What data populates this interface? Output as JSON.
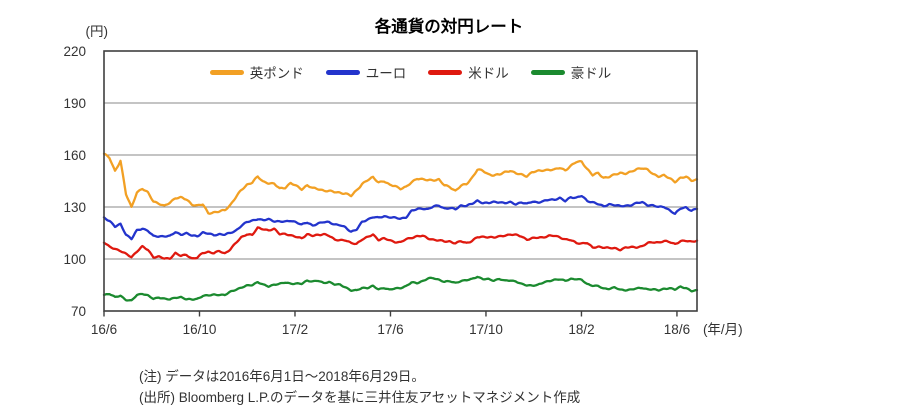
{
  "chart_data": {
    "type": "line",
    "title": "各通貨の対円レート",
    "unit_label": "(円)",
    "x_axis_unit": "(年/月)",
    "x_tick_labels": [
      "16/6",
      "16/10",
      "17/2",
      "17/6",
      "17/10",
      "18/2",
      "18/6"
    ],
    "x_tick_months": [
      0,
      4,
      8,
      12,
      16,
      20,
      24
    ],
    "xlim_months": [
      0,
      24.84
    ],
    "y_ticks": [
      220,
      190,
      160,
      130,
      100,
      70
    ],
    "ylim": [
      70,
      220
    ],
    "grid": "horizontal-only",
    "legend_position": "top-center",
    "x_range_label": "2016/6/1 - 2018/6/29 (daily)",
    "series": [
      {
        "name": "英ポンド",
        "color": "#F2A024",
        "values": [
          160.7,
          158.2,
          150.8,
          156.8,
          137.3,
          129.8,
          138.6,
          140.5,
          138.2,
          133.4,
          132.0,
          130.4,
          132.6,
          135.3,
          135.4,
          134.3,
          131.6,
          130.8,
          131.4,
          126.5,
          126.9,
          127.3,
          128.2,
          131.2,
          135.6,
          139.7,
          142.8,
          144.3,
          147.4,
          144.6,
          143.9,
          143.3,
          140.6,
          141.3,
          143.8,
          142.1,
          140.3,
          142.6,
          140.8,
          140.4,
          139.6,
          139.2,
          138.6,
          138.3,
          137.8,
          136.3,
          139.6,
          143.4,
          145.4,
          147.1,
          144.4,
          144.9,
          142.6,
          142.3,
          140.6,
          141.4,
          144.2,
          146.6,
          145.9,
          145.4,
          145.6,
          145.9,
          142.4,
          141.6,
          139.4,
          142.2,
          143.1,
          146.8,
          151.6,
          150.8,
          148.9,
          148.4,
          148.6,
          150.1,
          151.1,
          149.4,
          148.6,
          147.9,
          150.2,
          150.6,
          151.2,
          151.6,
          151.4,
          152.6,
          151.3,
          153.6,
          155.9,
          156.3,
          151.9,
          148.3,
          149.6,
          146.9,
          147.3,
          148.6,
          149.8,
          149.3,
          150.1,
          151.9,
          152.6,
          151.4,
          148.9,
          147.8,
          148.3,
          146.4,
          144.6,
          146.9,
          147.3,
          145.3,
          145.9
        ]
      },
      {
        "name": "ユーロ",
        "color": "#2334CC",
        "values": [
          123.9,
          122.1,
          118.6,
          120.1,
          114.2,
          111.6,
          116.4,
          117.6,
          116.4,
          113.1,
          113.0,
          113.3,
          113.2,
          115.4,
          114.2,
          114.9,
          113.4,
          113.2,
          115.4,
          114.6,
          113.7,
          114.4,
          114.1,
          114.9,
          116.4,
          119.2,
          121.2,
          122.1,
          123.2,
          122.3,
          122.9,
          121.9,
          121.7,
          121.4,
          122.2,
          121.3,
          119.7,
          121.1,
          119.4,
          120.4,
          121.2,
          121.4,
          119.9,
          119.4,
          118.2,
          115.8,
          116.9,
          121.3,
          122.9,
          124.2,
          123.7,
          124.7,
          124.2,
          123.7,
          123.2,
          124.1,
          127.7,
          128.7,
          129.2,
          128.8,
          130.2,
          130.9,
          129.2,
          129.3,
          128.7,
          130.9,
          130.7,
          131.7,
          133.7,
          132.4,
          132.2,
          132.9,
          132.9,
          132.2,
          132.7,
          131.7,
          132.7,
          131.7,
          133.2,
          132.7,
          133.2,
          134.2,
          134.3,
          135.2,
          133.3,
          135.7,
          135.4,
          136.4,
          133.4,
          132.9,
          131.7,
          130.2,
          131.7,
          131.2,
          130.4,
          130.7,
          131.2,
          132.2,
          132.7,
          131.2,
          130.9,
          129.9,
          130.2,
          128.2,
          125.9,
          129.2,
          129.9,
          127.7,
          129.0
        ]
      },
      {
        "name": "米ドル",
        "color": "#DF190F",
        "values": [
          109.5,
          107.0,
          106.0,
          104.6,
          102.8,
          101.2,
          104.4,
          107.1,
          105.3,
          101.2,
          101.3,
          100.2,
          100.4,
          103.4,
          101.7,
          102.5,
          100.3,
          100.7,
          103.5,
          104.2,
          103.4,
          104.5,
          103.2,
          105.7,
          109.1,
          112.5,
          114.4,
          113.8,
          117.9,
          117.4,
          116.5,
          117.2,
          114.5,
          114.6,
          113.4,
          112.8,
          112.1,
          114.2,
          113.3,
          114.0,
          114.4,
          113.3,
          111.2,
          111.0,
          110.7,
          109.1,
          108.9,
          111.3,
          112.5,
          114.2,
          111.1,
          111.8,
          110.8,
          109.9,
          109.6,
          111.3,
          112.3,
          113.2,
          113.3,
          111.9,
          111.2,
          110.7,
          110.1,
          110.2,
          109.1,
          110.2,
          109.2,
          110.5,
          112.5,
          112.7,
          112.8,
          112.4,
          112.9,
          113.6,
          114.2,
          113.8,
          113.1,
          111.3,
          111.9,
          112.3,
          112.6,
          113.4,
          113.3,
          112.6,
          111.4,
          110.9,
          109.2,
          109.1,
          109.3,
          106.4,
          107.2,
          106.7,
          106.2,
          106.3,
          105.4,
          106.5,
          106.8,
          106.9,
          107.3,
          109.1,
          109.8,
          109.6,
          110.2,
          109.9,
          108.7,
          110.2,
          110.4,
          110.1,
          110.7
        ]
      },
      {
        "name": "豪ドル",
        "color": "#1B8A2F",
        "values": [
          79.4,
          79.9,
          77.9,
          78.9,
          76.4,
          75.9,
          79.2,
          80.1,
          78.9,
          76.9,
          77.9,
          77.1,
          76.6,
          77.7,
          78.1,
          76.7,
          76.6,
          77.1,
          78.7,
          78.9,
          79.5,
          79.4,
          79.1,
          81.1,
          82.4,
          83.4,
          84.6,
          85.1,
          86.7,
          85.1,
          84.2,
          85.3,
          85.6,
          86.4,
          85.9,
          85.8,
          85.6,
          87.6,
          87.1,
          87.4,
          86.1,
          86.9,
          85.3,
          85.1,
          83.7,
          81.9,
          81.8,
          83.3,
          83.4,
          84.4,
          82.4,
          83.4,
          82.3,
          82.9,
          83.3,
          84.4,
          86.4,
          86.1,
          87.3,
          88.8,
          88.9,
          88.1,
          86.9,
          87.1,
          86.2,
          87.4,
          87.7,
          88.4,
          89.9,
          88.4,
          88.3,
          87.6,
          88.6,
          87.4,
          87.6,
          87.2,
          85.6,
          84.7,
          84.8,
          85.1,
          86.3,
          87.3,
          88.1,
          88.2,
          87.4,
          88.6,
          88.4,
          87.9,
          85.6,
          84.7,
          84.3,
          82.9,
          82.9,
          83.6,
          82.2,
          82.1,
          82.4,
          82.9,
          83.4,
          82.6,
          82.4,
          81.9,
          82.9,
          83.1,
          82.3,
          84.1,
          83.3,
          81.4,
          81.9
        ]
      }
    ]
  },
  "notes": {
    "note": "(注) データは2016年6月1日～2018年6月29日。",
    "source": "(出所) Bloomberg L.P.のデータを基に三井住友アセットマネジメント作成"
  },
  "colors": {
    "grid": "#8A8A8A",
    "frame": "#3F3F3F",
    "text": "#333333",
    "title": "#000000"
  }
}
